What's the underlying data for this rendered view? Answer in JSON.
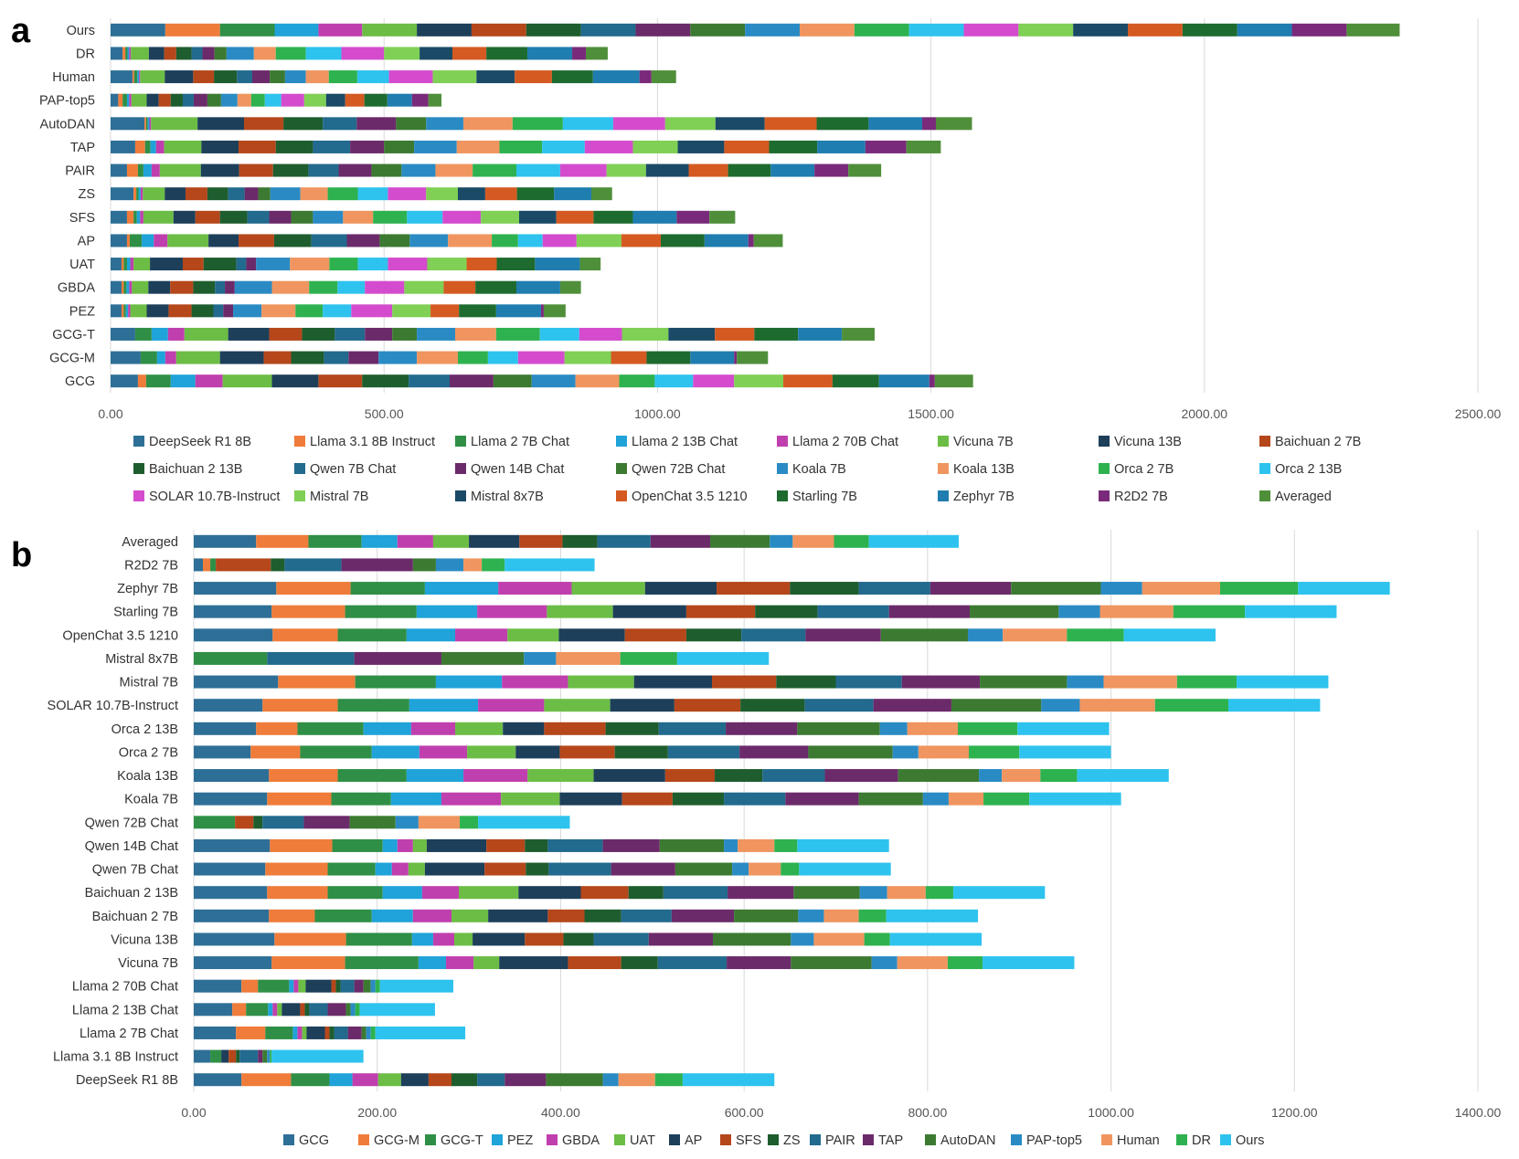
{
  "chart_data": [
    {
      "panel": "a",
      "type": "bar",
      "orientation": "horizontal",
      "stacked": true,
      "xlim": [
        0,
        2500
      ],
      "xticks": [
        "0.00",
        "500.00",
        "1000.00",
        "1500.00",
        "2000.00",
        "2500.00"
      ],
      "xtick_values": [
        0,
        500,
        1000,
        1500,
        2000,
        2500
      ],
      "categories": [
        "Ours",
        "DR",
        "Human",
        "PAP-top5",
        "AutoDAN",
        "TAP",
        "PAIR",
        "ZS",
        "SFS",
        "AP",
        "UAT",
        "GBDA",
        "PEZ",
        "GCG-T",
        "GCG-M",
        "GCG"
      ],
      "series": [
        {
          "name": "DeepSeek R1 8B",
          "color": "#2e6f97",
          "values": [
            100,
            22,
            40,
            14,
            62,
            45,
            30,
            42,
            30,
            30,
            20,
            20,
            20,
            45,
            55,
            50
          ]
        },
        {
          "name": "Llama 3.1 8B Instruct",
          "color": "#ef7c3a",
          "values": [
            100,
            5,
            3,
            8,
            3,
            18,
            20,
            5,
            12,
            5,
            4,
            4,
            4,
            0,
            0,
            15
          ]
        },
        {
          "name": "Llama 2 7B Chat",
          "color": "#2f8f46",
          "values": [
            100,
            4,
            6,
            8,
            3,
            10,
            10,
            4,
            6,
            22,
            6,
            5,
            4,
            30,
            30,
            45
          ]
        },
        {
          "name": "Llama 2 13B Chat",
          "color": "#1fa3d9",
          "values": [
            80,
            3,
            3,
            4,
            3,
            10,
            15,
            4,
            6,
            22,
            6,
            5,
            4,
            30,
            15,
            45
          ]
        },
        {
          "name": "Llama 2 70B Chat",
          "color": "#c03fae",
          "values": [
            80,
            3,
            2,
            4,
            3,
            15,
            15,
            4,
            6,
            25,
            6,
            5,
            4,
            30,
            20,
            50
          ]
        },
        {
          "name": "Vicuna 7B",
          "color": "#6cbd45",
          "values": [
            100,
            33,
            45,
            28,
            85,
            68,
            75,
            40,
            55,
            75,
            30,
            30,
            30,
            80,
            80,
            90
          ]
        },
        {
          "name": "Vicuna 13B",
          "color": "#1d3f5a",
          "values": [
            100,
            28,
            52,
            22,
            85,
            68,
            70,
            38,
            40,
            55,
            60,
            40,
            40,
            75,
            80,
            85
          ]
        },
        {
          "name": "Baichuan 2 7B",
          "color": "#b5471b",
          "values": [
            100,
            22,
            38,
            22,
            72,
            68,
            62,
            40,
            45,
            65,
            38,
            42,
            42,
            60,
            50,
            80
          ]
        },
        {
          "name": "Baichuan 2 13B",
          "color": "#1e5d2e",
          "values": [
            100,
            28,
            42,
            22,
            72,
            68,
            65,
            38,
            50,
            68,
            60,
            40,
            40,
            60,
            60,
            85
          ]
        },
        {
          "name": "Qwen 7B Chat",
          "color": "#226a8e",
          "values": [
            100,
            20,
            28,
            20,
            62,
            68,
            55,
            30,
            40,
            65,
            18,
            18,
            18,
            55,
            45,
            75
          ]
        },
        {
          "name": "Qwen 14B Chat",
          "color": "#6b2a6a",
          "values": [
            100,
            22,
            32,
            25,
            72,
            62,
            60,
            25,
            40,
            60,
            18,
            18,
            18,
            50,
            55,
            80
          ]
        },
        {
          "name": "Qwen 72B Chat",
          "color": "#3c7a32",
          "values": [
            100,
            22,
            28,
            25,
            55,
            55,
            55,
            22,
            40,
            55,
            0,
            0,
            0,
            45,
            0,
            70
          ]
        },
        {
          "name": "Koala 7B",
          "color": "#2a8bc4",
          "values": [
            100,
            50,
            38,
            30,
            68,
            78,
            62,
            55,
            55,
            70,
            62,
            68,
            52,
            70,
            70,
            80
          ]
        },
        {
          "name": "Koala 13B",
          "color": "#f0955f",
          "values": [
            100,
            40,
            42,
            25,
            90,
            78,
            68,
            50,
            55,
            80,
            72,
            68,
            62,
            75,
            75,
            80
          ]
        },
        {
          "name": "Orca 2 7B",
          "color": "#2eb24f",
          "values": [
            100,
            55,
            52,
            25,
            92,
            78,
            80,
            55,
            62,
            48,
            52,
            52,
            50,
            80,
            55,
            65
          ]
        },
        {
          "name": "Orca 2 13B",
          "color": "#2ec3ee",
          "values": [
            100,
            65,
            58,
            30,
            92,
            78,
            80,
            55,
            65,
            45,
            55,
            50,
            52,
            72,
            55,
            70
          ]
        },
        {
          "name": "SOLAR 10.7B-Instruct",
          "color": "#d44ccd",
          "values": [
            100,
            78,
            80,
            42,
            95,
            88,
            85,
            70,
            70,
            62,
            72,
            72,
            75,
            78,
            85,
            75
          ]
        },
        {
          "name": "Mistral 7B",
          "color": "#7fd055",
          "values": [
            100,
            65,
            80,
            40,
            92,
            82,
            72,
            58,
            70,
            82,
            72,
            72,
            70,
            85,
            85,
            90
          ]
        },
        {
          "name": "Mistral 8x7B",
          "color": "#1a4a66",
          "values": [
            100,
            60,
            70,
            35,
            90,
            85,
            78,
            50,
            68,
            0,
            0,
            0,
            0,
            85,
            0,
            0
          ]
        },
        {
          "name": "OpenChat 3.5 1210",
          "color": "#d45a22",
          "values": [
            100,
            62,
            68,
            35,
            95,
            82,
            72,
            58,
            68,
            72,
            55,
            58,
            52,
            72,
            65,
            90
          ]
        },
        {
          "name": "Starling 7B",
          "color": "#1e6b2f",
          "values": [
            100,
            75,
            75,
            42,
            95,
            88,
            78,
            68,
            72,
            80,
            70,
            75,
            68,
            80,
            80,
            85
          ]
        },
        {
          "name": "Zephyr 7B",
          "color": "#1f7db0",
          "values": [
            100,
            82,
            85,
            45,
            98,
            88,
            80,
            68,
            80,
            80,
            82,
            80,
            82,
            80,
            80,
            92
          ]
        },
        {
          "name": "R2D2 7B",
          "color": "#7a2a7a",
          "values": [
            100,
            25,
            22,
            30,
            25,
            75,
            62,
            0,
            60,
            10,
            0,
            0,
            5,
            0,
            5,
            10
          ]
        },
        {
          "name": "Averaged",
          "color": "#4f8f3a",
          "values": [
            97,
            40,
            45,
            24,
            66,
            63,
            60,
            38,
            47,
            53,
            38,
            38,
            40,
            60,
            57,
            70
          ]
        }
      ]
    },
    {
      "panel": "b",
      "type": "bar",
      "orientation": "horizontal",
      "stacked": true,
      "xlim": [
        0,
        1400
      ],
      "xticks": [
        "0.00",
        "200.00",
        "400.00",
        "600.00",
        "800.00",
        "1000.00",
        "1200.00",
        "1400.00"
      ],
      "xtick_values": [
        0,
        200,
        400,
        600,
        800,
        1000,
        1200,
        1400
      ],
      "categories": [
        "Averaged",
        "R2D2 7B",
        "Zephyr 7B",
        "Starling 7B",
        "OpenChat 3.5 1210",
        "Mistral 8x7B",
        "Mistral 7B",
        "SOLAR 10.7B-Instruct",
        "Orca 2 13B",
        "Orca 2 7B",
        "Koala 13B",
        "Koala 7B",
        "Qwen 72B Chat",
        "Qwen 14B Chat",
        "Qwen 7B Chat",
        "Baichuan 2 13B",
        "Baichuan 2 7B",
        "Vicuna 13B",
        "Vicuna 7B",
        "Llama 2 70B Chat",
        "Llama 2 13B Chat",
        "Llama 2 7B Chat",
        "Llama 3.1 8B Instruct",
        "DeepSeek R1 8B"
      ],
      "series": [
        {
          "name": "GCG",
          "color": "#2e6f97",
          "values": [
            68,
            10,
            90,
            85,
            86,
            0,
            92,
            75,
            68,
            62,
            82,
            80,
            0,
            83,
            78,
            80,
            82,
            88,
            85,
            52,
            42,
            46,
            18,
            52
          ]
        },
        {
          "name": "GCG-M",
          "color": "#ef7c3a",
          "values": [
            57,
            8,
            81,
            80,
            71,
            0,
            84,
            82,
            45,
            54,
            75,
            70,
            0,
            68,
            68,
            66,
            50,
            78,
            80,
            18,
            15,
            32,
            0,
            54
          ]
        },
        {
          "name": "GCG-T",
          "color": "#2f8f46",
          "values": [
            58,
            6,
            81,
            78,
            75,
            80,
            88,
            78,
            72,
            78,
            75,
            65,
            45,
            55,
            52,
            60,
            62,
            72,
            80,
            34,
            24,
            30,
            12,
            42
          ]
        },
        {
          "name": "PEZ",
          "color": "#1fa3d9",
          "values": [
            39,
            0,
            80,
            66,
            53,
            0,
            72,
            75,
            52,
            52,
            62,
            55,
            0,
            16,
            18,
            43,
            45,
            23,
            30,
            5,
            5,
            5,
            0,
            25
          ]
        },
        {
          "name": "GBDA",
          "color": "#c03fae",
          "values": [
            39,
            0,
            80,
            76,
            57,
            0,
            72,
            72,
            48,
            52,
            70,
            65,
            0,
            17,
            18,
            40,
            42,
            23,
            30,
            5,
            5,
            5,
            0,
            28
          ]
        },
        {
          "name": "UAT",
          "color": "#6cbd45",
          "values": [
            39,
            0,
            80,
            72,
            56,
            0,
            72,
            72,
            52,
            53,
            72,
            64,
            0,
            15,
            18,
            65,
            40,
            20,
            28,
            8,
            5,
            5,
            0,
            25
          ]
        },
        {
          "name": "AP",
          "color": "#1d3f5a",
          "values": [
            55,
            0,
            78,
            80,
            72,
            0,
            85,
            70,
            45,
            48,
            78,
            68,
            0,
            65,
            65,
            68,
            65,
            57,
            75,
            28,
            20,
            20,
            8,
            30
          ]
        },
        {
          "name": "SFS",
          "color": "#b5471b",
          "values": [
            47,
            60,
            80,
            75,
            67,
            0,
            70,
            72,
            67,
            60,
            54,
            55,
            20,
            42,
            45,
            52,
            40,
            42,
            58,
            5,
            5,
            5,
            8,
            25
          ]
        },
        {
          "name": "ZS",
          "color": "#1e5d2e",
          "values": [
            38,
            15,
            75,
            68,
            60,
            0,
            65,
            70,
            58,
            58,
            52,
            56,
            10,
            25,
            25,
            38,
            40,
            33,
            40,
            5,
            5,
            5,
            4,
            28
          ]
        },
        {
          "name": "PAIR",
          "color": "#226a8e",
          "values": [
            58,
            62,
            78,
            78,
            70,
            95,
            72,
            75,
            73,
            78,
            68,
            67,
            45,
            60,
            68,
            70,
            55,
            60,
            75,
            15,
            20,
            15,
            20,
            30
          ]
        },
        {
          "name": "TAP",
          "color": "#6b2a6a",
          "values": [
            65,
            78,
            88,
            88,
            82,
            95,
            85,
            85,
            78,
            75,
            80,
            80,
            50,
            62,
            70,
            72,
            68,
            70,
            70,
            10,
            20,
            15,
            5,
            45
          ]
        },
        {
          "name": "AutoDAN",
          "color": "#3c7a32",
          "values": [
            65,
            25,
            98,
            97,
            95,
            90,
            95,
            98,
            90,
            92,
            88,
            70,
            50,
            70,
            62,
            72,
            70,
            85,
            88,
            8,
            5,
            5,
            5,
            62
          ]
        },
        {
          "name": "PAP-top5",
          "color": "#2a8bc4",
          "values": [
            25,
            30,
            45,
            45,
            38,
            35,
            40,
            42,
            30,
            28,
            25,
            28,
            25,
            15,
            18,
            30,
            28,
            25,
            28,
            5,
            5,
            5,
            3,
            17
          ]
        },
        {
          "name": "Human",
          "color": "#f0955f",
          "values": [
            45,
            20,
            85,
            80,
            70,
            70,
            80,
            82,
            55,
            55,
            42,
            38,
            45,
            40,
            35,
            42,
            38,
            55,
            55,
            0,
            0,
            0,
            0,
            40
          ]
        },
        {
          "name": "DR",
          "color": "#2eb24f",
          "values": [
            38,
            25,
            85,
            78,
            62,
            62,
            65,
            80,
            65,
            55,
            40,
            50,
            20,
            25,
            20,
            30,
            30,
            28,
            38,
            5,
            5,
            5,
            2,
            30
          ]
        },
        {
          "name": "Ours",
          "color": "#2ec3ee",
          "values": [
            98,
            98,
            100,
            100,
            100,
            100,
            100,
            100,
            100,
            100,
            100,
            100,
            100,
            100,
            100,
            100,
            100,
            100,
            100,
            80,
            82,
            98,
            100,
            100
          ]
        }
      ]
    }
  ]
}
